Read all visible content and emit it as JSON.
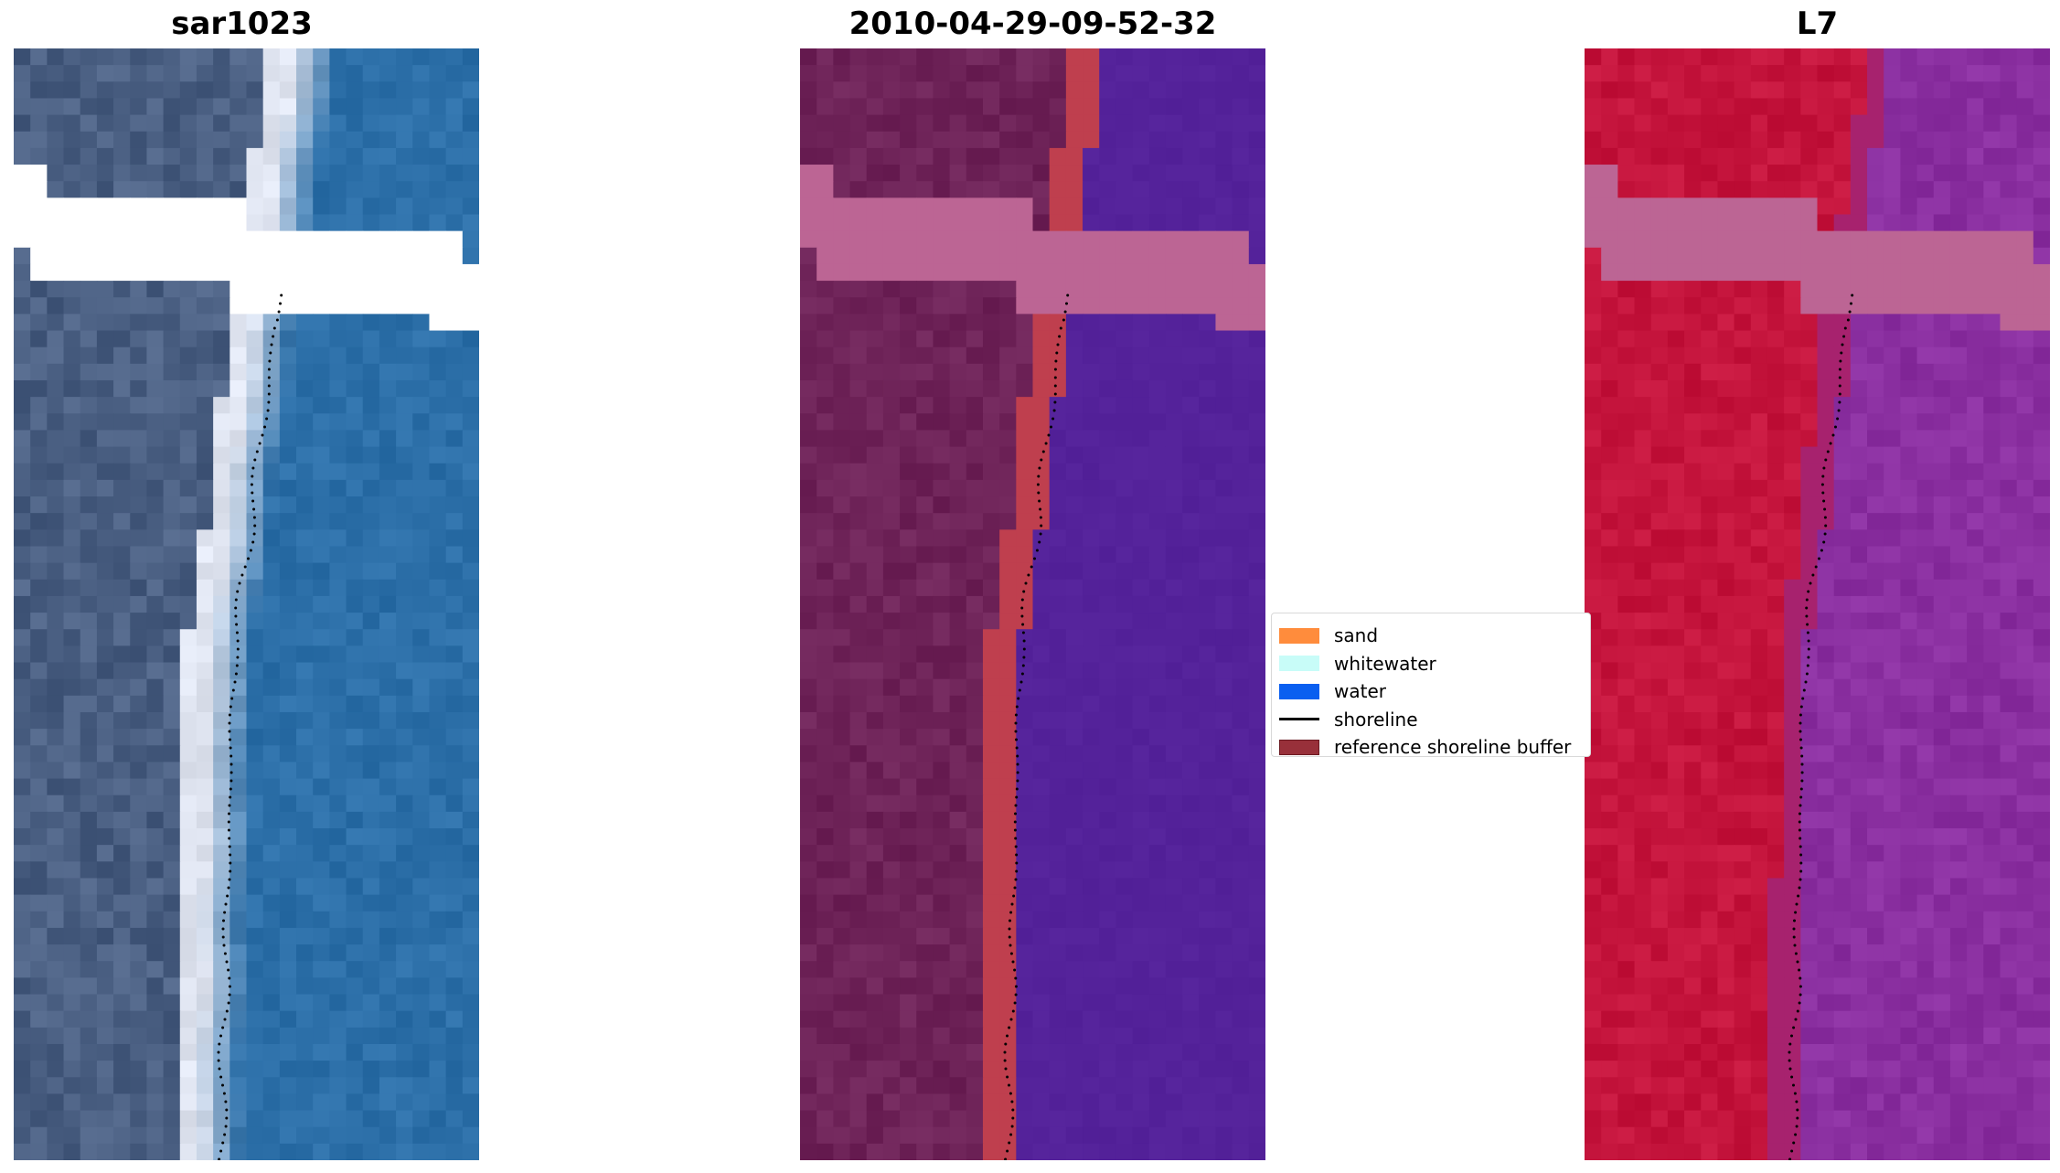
{
  "panels": [
    {
      "title": "sar1023",
      "kind": "rgb"
    },
    {
      "title": "2010-04-29-09-52-32",
      "kind": "classified"
    },
    {
      "title": "L7",
      "kind": "mndwi"
    }
  ],
  "legend": {
    "items": [
      {
        "label": "sand",
        "color": "#ff8c3c",
        "type": "patch"
      },
      {
        "label": "whitewater",
        "color": "#c8fcf8",
        "type": "patch"
      },
      {
        "label": "water",
        "color": "#0a5ff0",
        "type": "patch"
      },
      {
        "label": "shoreline",
        "color": "#000000",
        "type": "line"
      },
      {
        "label": "reference shoreline buffer",
        "color": "#98303a",
        "type": "patch"
      }
    ]
  },
  "colors": {
    "rgb_land": "#4a5f82",
    "rgb_beach": "#dfe4f0",
    "rgb_water": "#2c6fa8",
    "classified_land": "#6e2358",
    "classified_buffer": "#bf3f4e",
    "classified_water": "#54229a",
    "mndwi_land": "#c4143c",
    "mndwi_water": "#8a2fa0",
    "nodata_rgb": "#ffffff",
    "nodata_overlay": "#bc6594",
    "shoreline": "#000000"
  }
}
